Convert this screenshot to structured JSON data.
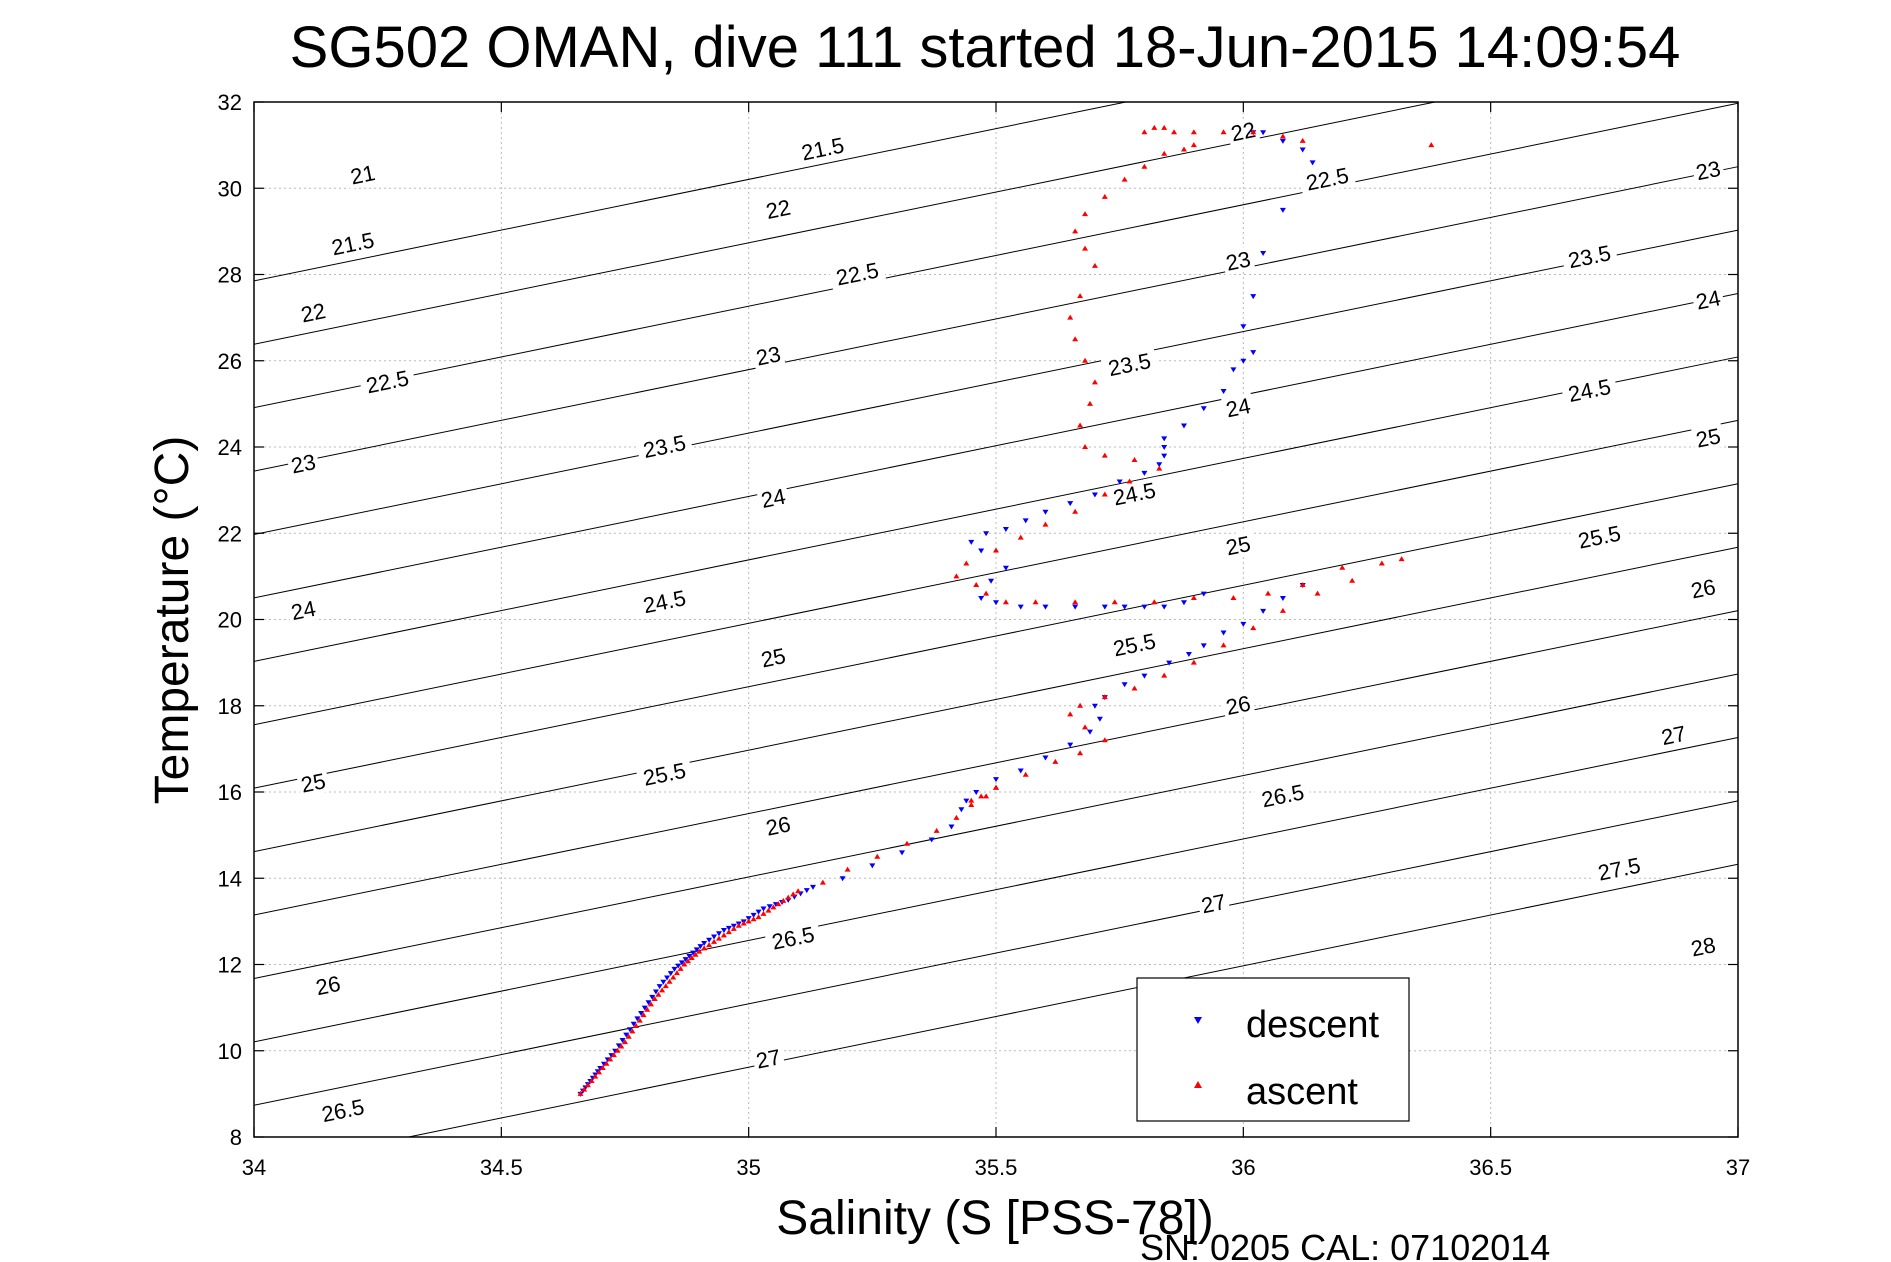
{
  "chart_data": {
    "type": "scatter",
    "title": "SG502 OMAN, dive 111 started 18-Jun-2015 14:09:54",
    "xlabel": "Salinity (S [PSS-78])",
    "ylabel": "Temperature (°C)",
    "xlim": [
      34,
      37
    ],
    "ylim": [
      8,
      32
    ],
    "xticks": [
      34,
      34.5,
      35,
      35.5,
      36,
      36.5,
      37
    ],
    "xtick_labels": [
      "34",
      "34.5",
      "35",
      "35.5",
      "36",
      "36.5",
      "37"
    ],
    "yticks": [
      8,
      10,
      12,
      14,
      16,
      18,
      20,
      22,
      24,
      26,
      28,
      30,
      32
    ],
    "ytick_labels": [
      "8",
      "10",
      "12",
      "14",
      "16",
      "18",
      "20",
      "22",
      "24",
      "26",
      "28",
      "30",
      "32"
    ],
    "grid": true,
    "legend_position": "bottom-right",
    "footer": "SN: 0205  CAL: 07102014",
    "density_contours": {
      "levels": [
        21,
        21.5,
        22,
        22.5,
        23,
        23.5,
        24,
        24.5,
        25,
        25.5,
        26,
        26.5,
        27,
        27.5,
        28
      ],
      "labels": [
        {
          "text": "21",
          "s": 34.22,
          "t": 30.3
        },
        {
          "text": "21.5",
          "s": 34.2,
          "t": 28.7
        },
        {
          "text": "22",
          "s": 34.12,
          "t": 27.1
        },
        {
          "text": "22.5",
          "s": 34.27,
          "t": 25.5
        },
        {
          "text": "23",
          "s": 34.1,
          "t": 23.6
        },
        {
          "text": "24",
          "s": 34.1,
          "t": 20.2
        },
        {
          "text": "25",
          "s": 34.12,
          "t": 16.2
        },
        {
          "text": "26",
          "s": 34.15,
          "t": 11.5
        },
        {
          "text": "26.5",
          "s": 34.18,
          "t": 8.6
        },
        {
          "text": "21.5",
          "s": 35.15,
          "t": 30.9
        },
        {
          "text": "22",
          "s": 35.06,
          "t": 29.5
        },
        {
          "text": "22.5",
          "s": 35.22,
          "t": 28.0
        },
        {
          "text": "23",
          "s": 35.04,
          "t": 26.1
        },
        {
          "text": "23.5",
          "s": 34.83,
          "t": 24.0
        },
        {
          "text": "24",
          "s": 35.05,
          "t": 22.8
        },
        {
          "text": "24.5",
          "s": 34.83,
          "t": 20.4
        },
        {
          "text": "25",
          "s": 35.05,
          "t": 19.1
        },
        {
          "text": "25.5",
          "s": 34.83,
          "t": 16.4
        },
        {
          "text": "26",
          "s": 35.06,
          "t": 15.2
        },
        {
          "text": "26.5",
          "s": 35.09,
          "t": 12.6
        },
        {
          "text": "27",
          "s": 35.04,
          "t": 9.8
        },
        {
          "text": "22",
          "s": 36.0,
          "t": 31.3
        },
        {
          "text": "22.5",
          "s": 36.17,
          "t": 30.2
        },
        {
          "text": "23",
          "s": 35.99,
          "t": 28.3
        },
        {
          "text": "23.5",
          "s": 35.77,
          "t": 25.9
        },
        {
          "text": "24",
          "s": 35.99,
          "t": 24.9
        },
        {
          "text": "24.5",
          "s": 35.78,
          "t": 22.9
        },
        {
          "text": "25",
          "s": 35.99,
          "t": 21.7
        },
        {
          "text": "25.5",
          "s": 35.78,
          "t": 19.4
        },
        {
          "text": "26",
          "s": 35.99,
          "t": 18.0
        },
        {
          "text": "26.5",
          "s": 36.08,
          "t": 15.9
        },
        {
          "text": "27",
          "s": 35.94,
          "t": 13.4
        },
        {
          "text": "23",
          "s": 36.94,
          "t": 30.4
        },
        {
          "text": "23.5",
          "s": 36.7,
          "t": 28.4
        },
        {
          "text": "24",
          "s": 36.94,
          "t": 27.4
        },
        {
          "text": "24.5",
          "s": 36.7,
          "t": 25.3
        },
        {
          "text": "25",
          "s": 36.94,
          "t": 24.2
        },
        {
          "text": "25.5",
          "s": 36.72,
          "t": 21.9
        },
        {
          "text": "26",
          "s": 36.93,
          "t": 20.7
        },
        {
          "text": "27",
          "s": 36.87,
          "t": 17.3
        },
        {
          "text": "27.5",
          "s": 36.76,
          "t": 14.2
        },
        {
          "text": "28",
          "s": 36.93,
          "t": 12.4
        }
      ]
    },
    "series": [
      {
        "name": "descent",
        "color": "#0000ff",
        "marker": "triangle-down",
        "x": [
          34.66,
          34.68,
          34.7,
          34.73,
          34.76,
          34.79,
          34.82,
          34.85,
          34.88,
          34.91,
          34.95,
          34.99,
          35.03,
          35.08,
          35.13,
          35.19,
          35.25,
          35.31,
          35.37,
          35.41,
          35.43,
          35.44,
          35.46,
          35.5,
          35.55,
          35.6,
          35.65,
          35.69,
          35.71,
          35.7,
          35.72,
          35.76,
          35.8,
          35.85,
          35.89,
          35.92,
          35.96,
          36.0,
          36.04,
          36.08,
          36.12,
          35.92,
          35.88,
          35.84,
          35.8,
          35.76,
          35.72,
          35.66,
          35.6,
          35.55,
          35.5,
          35.47,
          35.49,
          35.52,
          35.47,
          35.45,
          35.48,
          35.52,
          35.56,
          35.6,
          35.65,
          35.7,
          35.75,
          35.8,
          35.83,
          35.84,
          35.84,
          35.84,
          35.88,
          35.92,
          35.96,
          35.98,
          36.0,
          36.02,
          36.0,
          36.02,
          36.04,
          36.08,
          36.14,
          36.12,
          36.08,
          36.04,
          36.02
        ],
        "y": [
          9.0,
          9.3,
          9.6,
          10.0,
          10.5,
          11.0,
          11.5,
          11.9,
          12.2,
          12.5,
          12.8,
          13.0,
          13.3,
          13.5,
          13.8,
          14.0,
          14.3,
          14.6,
          14.9,
          15.2,
          15.6,
          15.8,
          16.0,
          16.3,
          16.5,
          16.8,
          17.1,
          17.4,
          17.7,
          18.0,
          18.2,
          18.5,
          18.7,
          19.0,
          19.2,
          19.4,
          19.7,
          19.9,
          20.2,
          20.5,
          20.8,
          20.6,
          20.4,
          20.3,
          20.3,
          20.3,
          20.3,
          20.3,
          20.3,
          20.3,
          20.4,
          20.5,
          20.9,
          21.2,
          21.6,
          21.8,
          22.0,
          22.1,
          22.3,
          22.5,
          22.7,
          22.9,
          23.2,
          23.4,
          23.6,
          23.8,
          24.0,
          24.2,
          24.5,
          24.9,
          25.3,
          25.8,
          26.0,
          26.2,
          26.8,
          27.5,
          28.5,
          29.5,
          30.6,
          30.9,
          31.1,
          31.3,
          31.3
        ]
      },
      {
        "name": "ascent",
        "color": "#ff0000",
        "marker": "triangle-up",
        "x": [
          34.66,
          34.69,
          34.72,
          34.75,
          34.78,
          34.81,
          34.84,
          34.87,
          34.9,
          34.94,
          34.98,
          35.02,
          35.06,
          35.1,
          35.15,
          35.2,
          35.26,
          35.32,
          35.38,
          35.42,
          35.45,
          35.48,
          35.5,
          35.47,
          35.45,
          35.5,
          35.56,
          35.62,
          35.67,
          35.72,
          35.68,
          35.65,
          35.67,
          35.72,
          35.78,
          35.84,
          35.9,
          35.96,
          36.02,
          36.08,
          36.15,
          36.22,
          36.28,
          36.32,
          36.2,
          36.12,
          36.05,
          35.98,
          35.9,
          35.82,
          35.74,
          35.66,
          35.58,
          35.52,
          35.48,
          35.46,
          35.42,
          35.44,
          35.5,
          35.55,
          35.6,
          35.66,
          35.72,
          35.77,
          35.83,
          35.78,
          35.72,
          35.68,
          35.67,
          35.69,
          35.7,
          35.68,
          35.66,
          35.65,
          35.67,
          35.7,
          35.68,
          35.66,
          35.68,
          35.72,
          35.76,
          35.8,
          35.84,
          35.88,
          35.9,
          35.86,
          35.82,
          35.8,
          35.84,
          35.9,
          35.96,
          36.02,
          36.08,
          36.12,
          36.38
        ],
        "y": [
          9.0,
          9.4,
          9.8,
          10.2,
          10.7,
          11.2,
          11.6,
          12.0,
          12.3,
          12.6,
          12.9,
          13.1,
          13.4,
          13.7,
          13.9,
          14.2,
          14.5,
          14.8,
          15.1,
          15.4,
          15.7,
          15.9,
          16.1,
          15.9,
          15.8,
          16.1,
          16.4,
          16.7,
          16.9,
          17.2,
          17.5,
          17.8,
          18.0,
          18.2,
          18.4,
          18.7,
          19.0,
          19.4,
          19.8,
          20.2,
          20.6,
          20.9,
          21.3,
          21.4,
          21.2,
          20.8,
          20.6,
          20.5,
          20.5,
          20.4,
          20.4,
          20.4,
          20.4,
          20.4,
          20.6,
          20.8,
          21.0,
          21.3,
          21.6,
          21.9,
          22.2,
          22.5,
          22.9,
          23.2,
          23.5,
          23.7,
          23.8,
          24.0,
          24.5,
          25.0,
          25.5,
          26.0,
          26.5,
          27.0,
          27.5,
          28.2,
          28.6,
          29.0,
          29.4,
          29.8,
          30.2,
          30.5,
          30.8,
          30.9,
          31.0,
          31.3,
          31.4,
          31.3,
          31.4,
          31.3,
          31.3,
          31.3,
          31.2,
          31.1,
          31.0
        ]
      }
    ]
  }
}
